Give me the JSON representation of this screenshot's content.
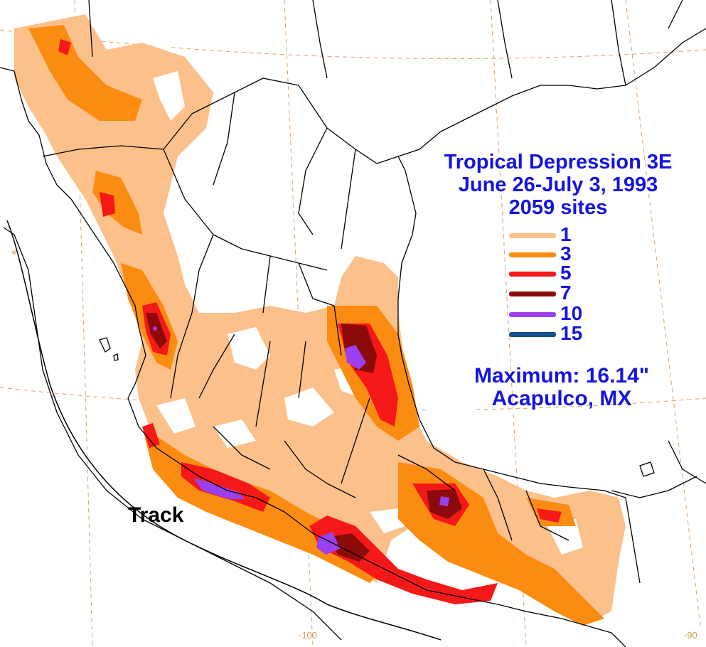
{
  "title": {
    "line1": "Tropical Depression 3E",
    "line2": "June 26-July 3, 1993",
    "line3": "2059 sites"
  },
  "legend": [
    {
      "label": "1",
      "color": "#fcc08a"
    },
    {
      "label": "3",
      "color": "#fb8c12"
    },
    {
      "label": "5",
      "color": "#f51818"
    },
    {
      "label": "7",
      "color": "#8c0a0a"
    },
    {
      "label": "10",
      "color": "#9a40ee"
    },
    {
      "label": "15",
      "color": "#14508c"
    }
  ],
  "maximum": {
    "line1": "Maximum:  16.14\"",
    "line2": "Acapulco, MX"
  },
  "track_label": "Track",
  "longitude_labels": [
    "-100",
    "-90"
  ],
  "colors": {
    "title_text": "#1414e0",
    "graticule": "#e0a060",
    "boundary": "#000000"
  }
}
